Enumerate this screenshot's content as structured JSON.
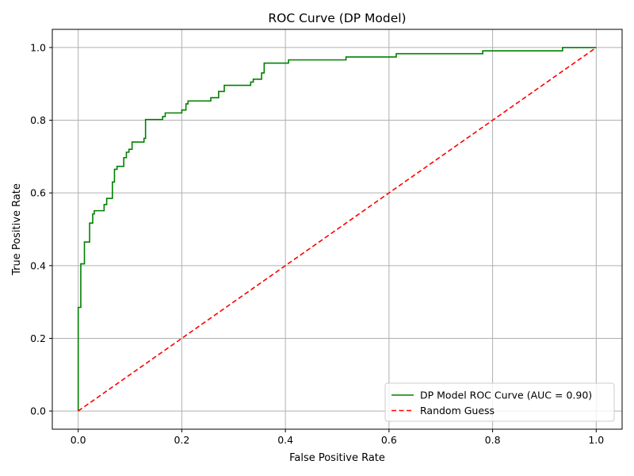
{
  "chart_data": {
    "type": "line",
    "title": "ROC Curve (DP Model)",
    "xlabel": "False Positive Rate",
    "ylabel": "True Positive Rate",
    "xlim": [
      -0.05,
      1.05
    ],
    "ylim": [
      -0.05,
      1.05
    ],
    "xticks": [
      "0.0",
      "0.2",
      "0.4",
      "0.6",
      "0.8",
      "1.0"
    ],
    "yticks": [
      "0.0",
      "0.2",
      "0.4",
      "0.6",
      "0.8",
      "1.0"
    ],
    "grid": true,
    "legend_position": "lower-right",
    "series": [
      {
        "name": "DP Model ROC Curve (AUC = 0.90)",
        "color": "#008000",
        "style": "solid",
        "step": true,
        "points": [
          [
            0.0,
            0.0
          ],
          [
            0.0,
            0.285
          ],
          [
            0.005,
            0.285
          ],
          [
            0.005,
            0.405
          ],
          [
            0.012,
            0.405
          ],
          [
            0.012,
            0.465
          ],
          [
            0.022,
            0.465
          ],
          [
            0.022,
            0.517
          ],
          [
            0.028,
            0.517
          ],
          [
            0.028,
            0.542
          ],
          [
            0.031,
            0.542
          ],
          [
            0.031,
            0.551
          ],
          [
            0.05,
            0.551
          ],
          [
            0.05,
            0.568
          ],
          [
            0.055,
            0.568
          ],
          [
            0.055,
            0.585
          ],
          [
            0.066,
            0.585
          ],
          [
            0.066,
            0.63
          ],
          [
            0.07,
            0.63
          ],
          [
            0.07,
            0.665
          ],
          [
            0.075,
            0.665
          ],
          [
            0.075,
            0.673
          ],
          [
            0.088,
            0.673
          ],
          [
            0.088,
            0.697
          ],
          [
            0.093,
            0.697
          ],
          [
            0.093,
            0.712
          ],
          [
            0.098,
            0.712
          ],
          [
            0.098,
            0.72
          ],
          [
            0.104,
            0.72
          ],
          [
            0.104,
            0.74
          ],
          [
            0.127,
            0.74
          ],
          [
            0.127,
            0.75
          ],
          [
            0.13,
            0.75
          ],
          [
            0.13,
            0.802
          ],
          [
            0.163,
            0.802
          ],
          [
            0.163,
            0.81
          ],
          [
            0.168,
            0.81
          ],
          [
            0.168,
            0.82
          ],
          [
            0.2,
            0.82
          ],
          [
            0.2,
            0.828
          ],
          [
            0.208,
            0.828
          ],
          [
            0.208,
            0.845
          ],
          [
            0.212,
            0.845
          ],
          [
            0.212,
            0.853
          ],
          [
            0.256,
            0.853
          ],
          [
            0.256,
            0.862
          ],
          [
            0.271,
            0.862
          ],
          [
            0.271,
            0.879
          ],
          [
            0.282,
            0.879
          ],
          [
            0.282,
            0.896
          ],
          [
            0.333,
            0.896
          ],
          [
            0.333,
            0.905
          ],
          [
            0.338,
            0.905
          ],
          [
            0.338,
            0.913
          ],
          [
            0.354,
            0.913
          ],
          [
            0.354,
            0.93
          ],
          [
            0.359,
            0.93
          ],
          [
            0.359,
            0.957
          ],
          [
            0.406,
            0.957
          ],
          [
            0.406,
            0.966
          ],
          [
            0.517,
            0.966
          ],
          [
            0.517,
            0.974
          ],
          [
            0.614,
            0.974
          ],
          [
            0.614,
            0.983
          ],
          [
            0.781,
            0.983
          ],
          [
            0.781,
            0.991
          ],
          [
            0.935,
            0.991
          ],
          [
            0.935,
            1.0
          ],
          [
            1.0,
            1.0
          ]
        ]
      },
      {
        "name": "Random Guess",
        "color": "#ff0000",
        "style": "dashed",
        "points": [
          [
            0,
            0
          ],
          [
            1,
            1
          ]
        ]
      }
    ]
  }
}
